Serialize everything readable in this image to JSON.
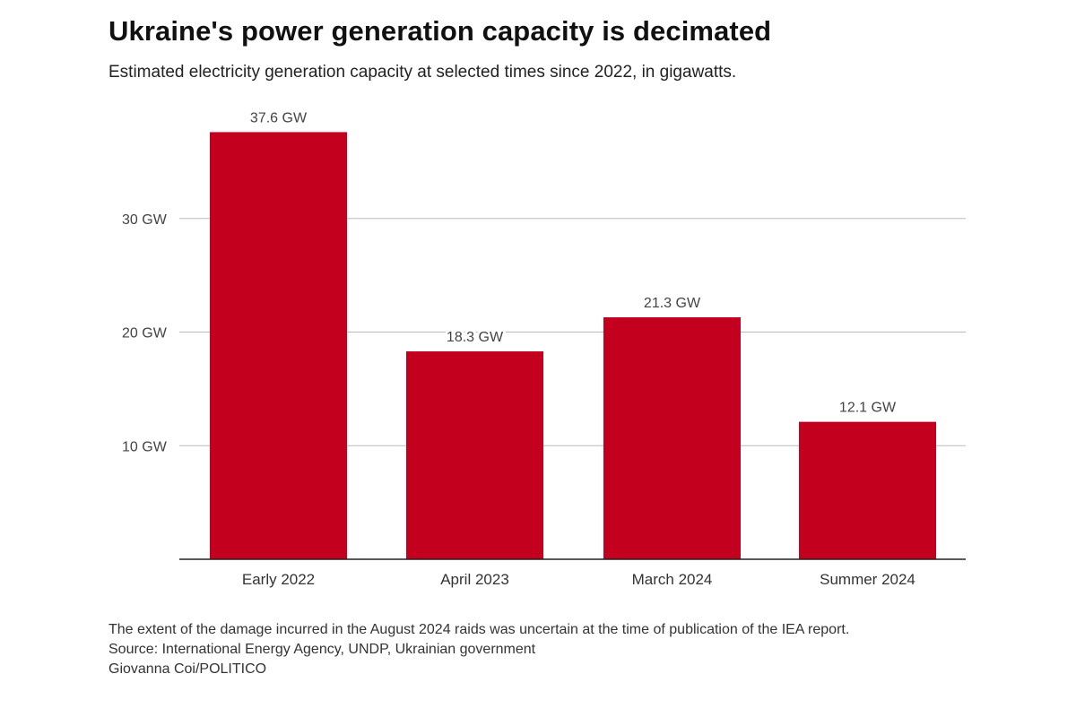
{
  "title": "Ukraine's power generation capacity is decimated",
  "subtitle": "Estimated electricity generation capacity at selected times since 2022, in gigawatts.",
  "colors": {
    "bar": "#c4001f",
    "gridline": "#bbbbbb",
    "axis": "#222222"
  },
  "chart_data": {
    "type": "bar",
    "categories": [
      "Early 2022",
      "April 2023",
      "March 2024",
      "Summer 2024"
    ],
    "values": [
      37.6,
      18.3,
      21.3,
      12.1
    ],
    "data_labels": [
      "37.6 GW",
      "18.3 GW",
      "21.3 GW",
      "12.1 GW"
    ],
    "y_ticks": [
      10,
      20,
      30
    ],
    "y_tick_labels": [
      "10 GW",
      "20 GW",
      "30 GW"
    ],
    "ylim": [
      0,
      40
    ],
    "unit": "GW",
    "xlabel": "",
    "ylabel": "",
    "grid": true
  },
  "footer": {
    "note": "The extent of the damage incurred in the August 2024 raids was uncertain at the time of publication of the IEA report.",
    "source": "Source: International Energy Agency, UNDP, Ukrainian government",
    "credit": "Giovanna Coi/POLITICO"
  }
}
